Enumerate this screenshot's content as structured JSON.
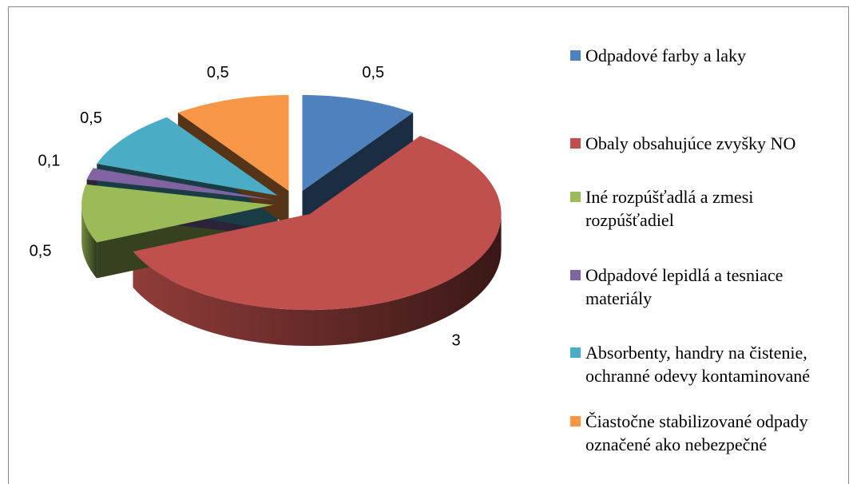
{
  "chart_data": {
    "type": "pie3d",
    "categories": [
      "Odpadové farby a laky",
      "Obaly obsahujúce zvyšky NO",
      "Iné rozpúšťadlá a zmesi rozpúšťadiel",
      "Odpadové lepidlá a tesniace materiály",
      "Absorbenty, handry na čistenie, ochranné odevy kontaminované",
      "Čiastočne stabilizované odpady označené ako nebezpečné"
    ],
    "values": [
      0.5,
      3,
      0.5,
      0.1,
      0.5,
      0.5
    ],
    "value_labels": [
      "0,5",
      "3",
      "0,5",
      "0,1",
      "0,5",
      "0,5"
    ],
    "colors": [
      "#4f81bd",
      "#c0504d",
      "#9bbb59",
      "#8064a2",
      "#4bacc6",
      "#f79646"
    ],
    "legend": "right"
  }
}
